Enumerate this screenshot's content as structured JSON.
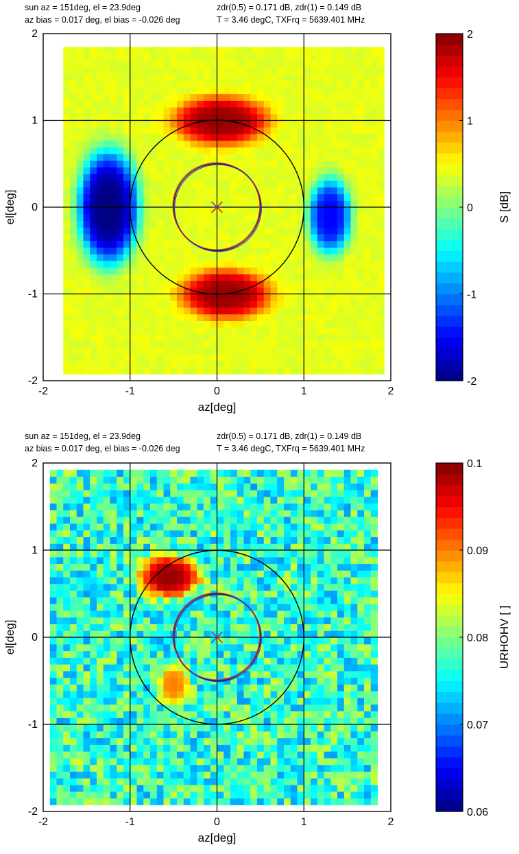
{
  "chart_data": [
    {
      "type": "heatmap",
      "header": {
        "line1_left": "sun az = 151deg, el = 23.9deg",
        "line2_left": "az bias = 0.017 deg, el bias = -0.026 deg",
        "line1_right": "zdr(0.5) = 0.171 dB, zdr(1) = 0.149 dB",
        "line2_right": "T = 3.46 degC, TXFrq = 5639.401 MHz"
      },
      "xlabel": "az[deg]",
      "ylabel": "el[deg]",
      "xlim": [
        -2,
        2
      ],
      "ylim": [
        -2,
        2
      ],
      "x_ticks": [
        "-2",
        "-1",
        "0",
        "1",
        "2"
      ],
      "y_ticks": [
        "-2",
        "-1",
        "0",
        "1",
        "2"
      ],
      "grid": true,
      "colorbar": {
        "label": "S [dB]",
        "range": [
          -2,
          2
        ],
        "ticks": [
          "-2",
          "-1",
          "0",
          "1",
          "2"
        ],
        "colormap": "jet"
      },
      "background_value": 0.4,
      "blobs": [
        {
          "name": "top-lobe",
          "cx": 0.05,
          "cy": 1.0,
          "rx": 0.62,
          "ry": 0.32,
          "value": 1.9
        },
        {
          "name": "bottom-lobe",
          "cx": 0.1,
          "cy": -1.0,
          "rx": 0.58,
          "ry": 0.32,
          "value": 1.9
        },
        {
          "name": "left-lobe",
          "cx": -1.25,
          "cy": 0.0,
          "rx": 0.4,
          "ry": 0.75,
          "value": -2.0
        },
        {
          "name": "right-lobe",
          "cx": 1.3,
          "cy": -0.1,
          "rx": 0.28,
          "ry": 0.5,
          "value": -1.5
        }
      ],
      "circles": [
        {
          "name": "outer-ring",
          "r": 1.0,
          "color": "#000000"
        },
        {
          "name": "inner-ring",
          "r": 0.5,
          "color": "#000000"
        }
      ],
      "center_marker": {
        "x": 0.0,
        "y": 0.0,
        "color": "#c0392b"
      }
    },
    {
      "type": "heatmap",
      "header": {
        "line1_left": "sun az = 151deg, el = 23.9deg",
        "line2_left": "az bias = 0.017 deg, el bias = -0.026 deg",
        "line1_right": "zdr(0.5) = 0.171 dB, zdr(1) = 0.149 dB",
        "line2_right": "T = 3.46 degC, TXFrq = 5639.401 MHz"
      },
      "xlabel": "az[deg]",
      "ylabel": "el[deg]",
      "xlim": [
        -2,
        2
      ],
      "ylim": [
        -2,
        2
      ],
      "x_ticks": [
        "-2",
        "-1",
        "0",
        "1",
        "2"
      ],
      "y_ticks": [
        "-2",
        "-1",
        "0",
        "1",
        "2"
      ],
      "grid": true,
      "colorbar": {
        "label": "URHOHV [ ]",
        "range": [
          0.06,
          0.1
        ],
        "ticks": [
          "0.06",
          "0.07",
          "0.08",
          "0.09",
          "0.1"
        ],
        "colormap": "jet"
      },
      "background_value": 0.077,
      "blobs": [
        {
          "name": "upper-left-lobe",
          "cx": -0.55,
          "cy": 0.7,
          "rx": 0.4,
          "ry": 0.28,
          "value": 0.099
        },
        {
          "name": "lower-left-lobe",
          "cx": -0.5,
          "cy": -0.55,
          "rx": 0.2,
          "ry": 0.28,
          "value": 0.09
        }
      ],
      "circles": [
        {
          "name": "outer-ring",
          "r": 1.0,
          "color": "#000000"
        },
        {
          "name": "inner-ring",
          "r": 0.5,
          "color": "#000000"
        }
      ],
      "center_marker": {
        "x": 0.0,
        "y": 0.0,
        "color": "#c0392b"
      }
    }
  ]
}
